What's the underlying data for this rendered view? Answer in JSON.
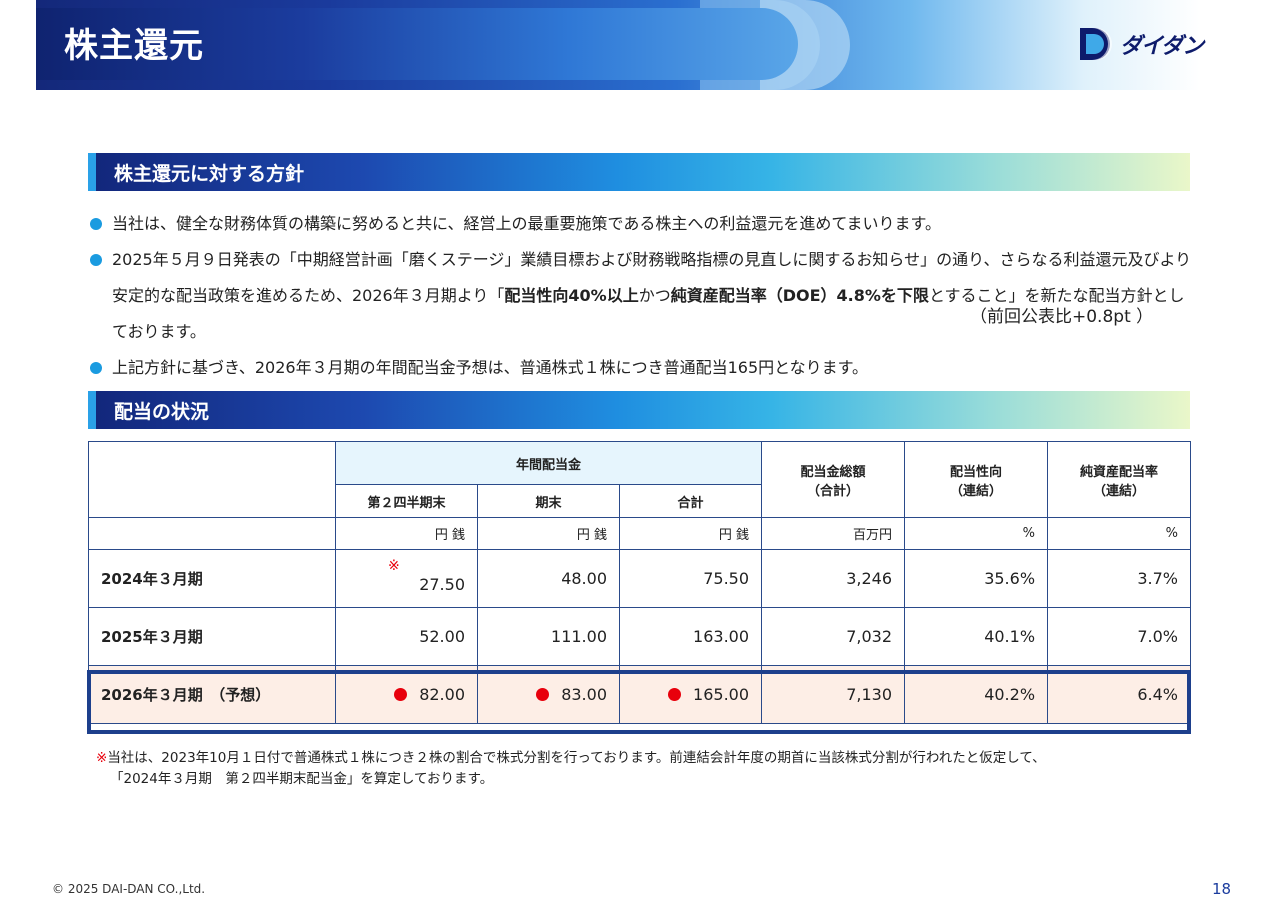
{
  "header": {
    "title": "株主還元",
    "logo_text": "ダイダン"
  },
  "section1": {
    "title": "株主還元に対する方針"
  },
  "bullets": {
    "b1": "当社は、健全な財務体質の構築に努めると共に、経営上の最重要施策である株主への利益還元を進めてまいります。",
    "b2_pre": "2025年５月９日発表の「中期経営計画「磨くステージ」業績目標および財務戦略指標の見直しに関するお知らせ」の通り、さらなる利益還元及びより安定的な配当政策を進めるため、2026年３月期より「",
    "b2_bold1": "配当性向40%以上",
    "b2_mid": "かつ",
    "b2_bold2": "純資産配当率（DOE）4.8%を下限",
    "b2_post": "とすること」を新たな配当方針としております。",
    "b2_note": "（前回公表比+0.8pt ）",
    "b3": "上記方針に基づき、2026年３月期の年間配当金予想は、普通株式１株につき普通配当165円となります。"
  },
  "section2": {
    "title": "配当の状況"
  },
  "table": {
    "annual_header": "年間配当金",
    "col_q2": "第２四半期末",
    "col_end": "期末",
    "col_total": "合計",
    "col_amount": "配当金総額\n（合計）",
    "col_payout": "配当性向\n（連結）",
    "col_doe": "純資産配当率\n（連結）",
    "units": [
      "円 銭",
      "円 銭",
      "円 銭",
      "百万円",
      "%",
      "%"
    ],
    "asterisk": "※",
    "rows": [
      {
        "label": "2024年３月期",
        "q2": "27.50",
        "end": "48.00",
        "total": "75.50",
        "amount": "3,246",
        "payout": "35.6%",
        "doe": "3.7%"
      },
      {
        "label": "2025年３月期",
        "q2": "52.00",
        "end": "111.00",
        "total": "163.00",
        "amount": "7,032",
        "payout": "40.1%",
        "doe": "7.0%"
      },
      {
        "label": "2026年３月期　（予想）",
        "q2": "82.00",
        "end": "83.00",
        "total": "165.00",
        "amount": "7,130",
        "payout": "40.2%",
        "doe": "6.4%"
      }
    ]
  },
  "footnote": {
    "mark": "※",
    "line1": "当社は、2023年10月１日付で普通株式１株につき２株の割合で株式分割を行っております。前連結会計年度の期首に当該株式分割が行われたと仮定して、",
    "line2": "「2024年３月期　第２四半期末配当金」を算定しております。"
  },
  "footer": {
    "copyright": "© 2025 DAI-DAN CO.,Ltd.",
    "page": "18"
  },
  "colors": {
    "accent_blue": "#1b3c9e",
    "bullet_blue": "#1a9be0",
    "forecast_red": "#e8000c",
    "forecast_bg": "#fdeee6"
  }
}
